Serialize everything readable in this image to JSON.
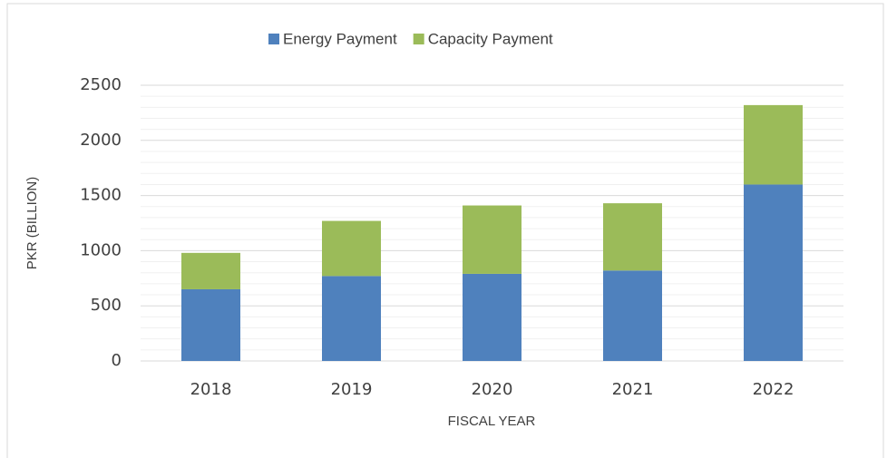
{
  "chart_data": {
    "type": "stacked_bar",
    "categories": [
      "2018",
      "2019",
      "2020",
      "2021",
      "2022"
    ],
    "series": [
      {
        "name": "Energy Payment",
        "color": "#4f81bd",
        "values": [
          650,
          770,
          790,
          820,
          1600
        ]
      },
      {
        "name": "Capacity Payment",
        "color": "#9bbb59",
        "values": [
          330,
          500,
          620,
          610,
          720
        ]
      }
    ],
    "ylim": [
      0,
      2500
    ],
    "yticks": [
      0,
      500,
      1000,
      1500,
      2000,
      2500
    ],
    "minor_yticks": [
      100,
      200,
      300,
      400,
      600,
      700,
      800,
      900,
      1100,
      1200,
      1300,
      1400,
      1600,
      1700,
      1800,
      1900,
      2100,
      2200,
      2300,
      2400
    ],
    "ylabel": "PKR (BILLION)",
    "xlabel": "FISCAL YEAR",
    "grid": true,
    "legend": "top"
  }
}
